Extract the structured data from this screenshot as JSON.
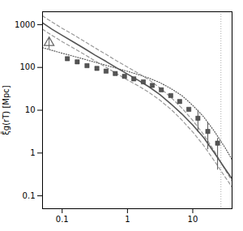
{
  "chart_data": {
    "type": "line",
    "ylabel": "ξ̄g(rT) [Mpc]",
    "log": true,
    "grid": false,
    "xlim": [
      0.05,
      40
    ],
    "ylim": [
      0.05,
      2000
    ],
    "xticks": [
      0.1,
      1,
      10
    ],
    "yticks": [
      0.1,
      1,
      10,
      100,
      1000
    ],
    "series": [
      {
        "type": "vline",
        "x": [
          27
        ],
        "color": "#aaaaaa",
        "line_style": "dotted"
      },
      {
        "type": "line",
        "line_style": "dotted",
        "color": "#555555",
        "x": [
          0.05,
          0.07,
          0.1,
          0.15,
          0.22,
          0.32,
          0.47,
          0.68,
          1.0,
          1.47,
          2.15,
          3.16,
          4.64,
          6.81,
          10,
          14.7,
          21.5,
          31.6,
          40
        ],
        "values": [
          290,
          250,
          215,
          182,
          155,
          132,
          112,
          96,
          81,
          68,
          56,
          44,
          32,
          22,
          13,
          7,
          3.2,
          1.3,
          0.7
        ]
      },
      {
        "type": "line",
        "line_style": "dashed",
        "color": "#999999",
        "x": [
          0.05,
          0.07,
          0.1,
          0.15,
          0.22,
          0.32,
          0.47,
          0.68,
          1.0,
          1.47,
          2.15,
          3.16,
          4.64,
          6.81,
          10,
          14.7,
          21.5,
          31.6,
          40
        ],
        "values": [
          1600,
          1150,
          820,
          575,
          405,
          285,
          202,
          143,
          102,
          73,
          51,
          33,
          20,
          11.2,
          5.8,
          2.7,
          1.1,
          0.4,
          0.22
        ]
      },
      {
        "type": "line",
        "line_style": "dashed",
        "color": "#999999",
        "x": [
          0.05,
          0.07,
          0.1,
          0.15,
          0.22,
          0.32,
          0.47,
          0.68,
          1.0,
          1.47,
          2.15,
          3.16,
          4.64,
          6.81,
          10,
          14.7,
          21.5,
          31.6,
          40
        ],
        "values": [
          780,
          560,
          400,
          282,
          200,
          142,
          101,
          72,
          51,
          37,
          26,
          17,
          10.5,
          5.9,
          3.1,
          1.5,
          0.65,
          0.27,
          0.16
        ]
      },
      {
        "type": "line",
        "line_style": "solid",
        "color": "#555555",
        "x": [
          0.05,
          0.07,
          0.1,
          0.15,
          0.22,
          0.32,
          0.47,
          0.68,
          1.0,
          1.47,
          2.15,
          3.16,
          4.64,
          6.81,
          10,
          14.7,
          21.5,
          31.6,
          40
        ],
        "values": [
          1100,
          780,
          560,
          390,
          275,
          193,
          138,
          98,
          70,
          50,
          35,
          23,
          14,
          8.2,
          4.5,
          2.3,
          1.0,
          0.42,
          0.25
        ]
      },
      {
        "type": "scatter",
        "marker": "square",
        "color": "#555555",
        "x": [
          0.12,
          0.17,
          0.24,
          0.34,
          0.47,
          0.65,
          0.9,
          1.25,
          1.75,
          2.4,
          3.3,
          4.6,
          6.3,
          8.7,
          12,
          17,
          24
        ],
        "values": [
          160,
          135,
          110,
          95,
          82,
          72,
          62,
          54,
          46,
          38,
          30,
          22,
          16,
          10.5,
          6.5,
          3.2,
          1.7
        ],
        "yerr_lo": [
          0,
          0,
          0,
          0,
          0,
          0,
          0,
          0,
          0,
          0,
          0,
          0,
          0,
          0,
          3.5,
          2.0,
          1.3
        ],
        "yerr_hi": [
          0,
          0,
          0,
          0,
          0,
          0,
          0,
          0,
          0,
          0,
          0,
          0,
          0,
          0,
          3.5,
          2.0,
          0.5
        ]
      },
      {
        "type": "scatter",
        "marker": "triangle",
        "color": "#666666",
        "x": [
          0.063
        ],
        "values": [
          380
        ],
        "yerr_lo": [
          120
        ],
        "yerr_hi": [
          120
        ]
      }
    ]
  }
}
